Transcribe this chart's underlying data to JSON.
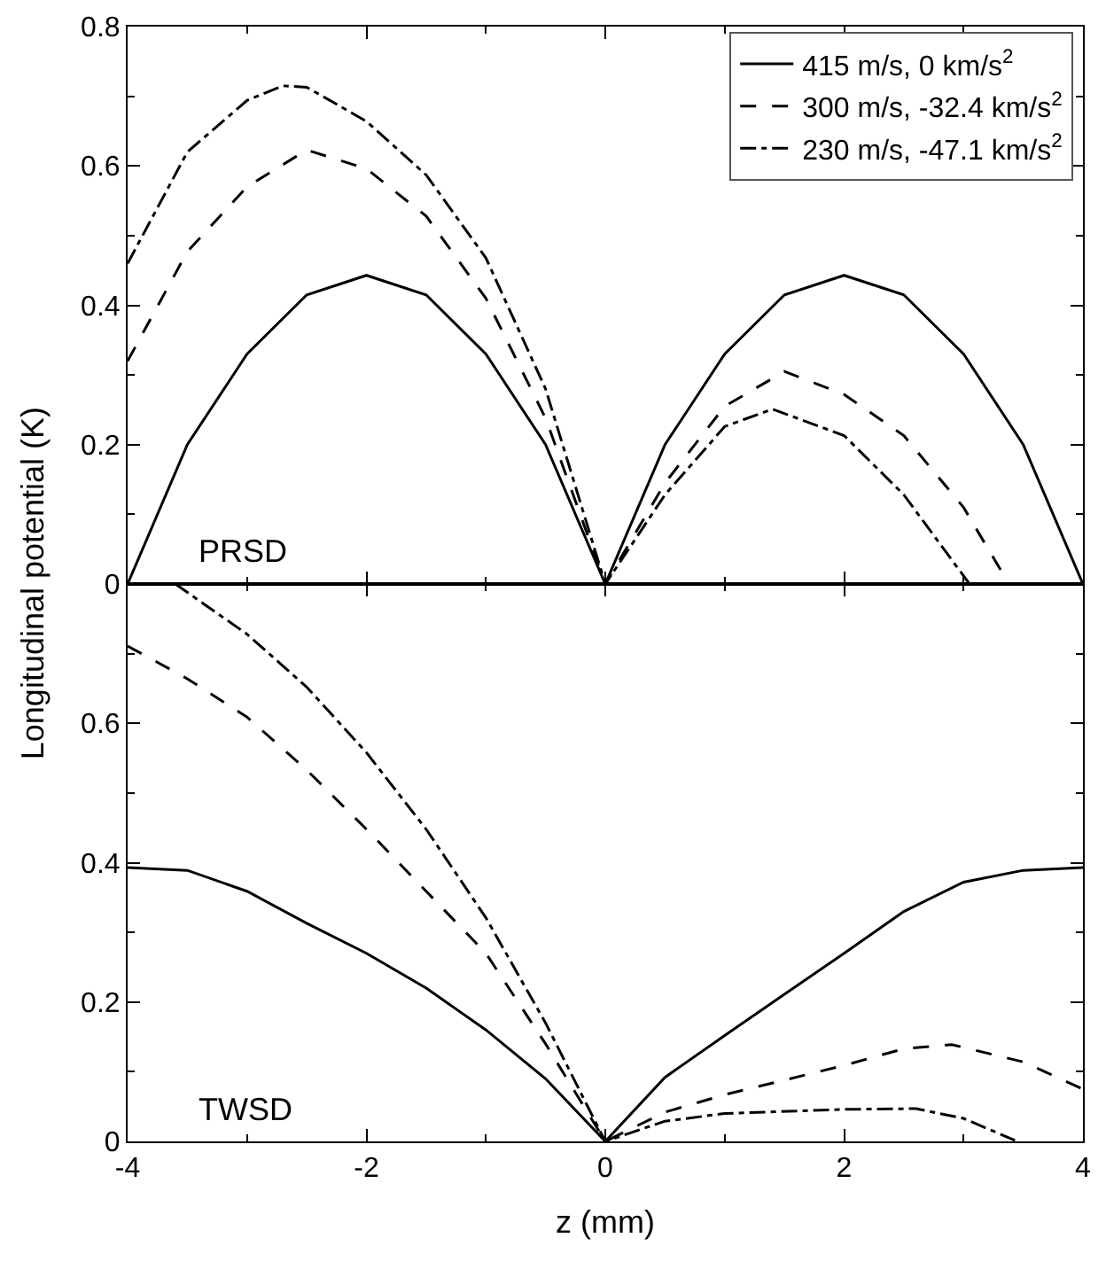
{
  "chart_data": [
    {
      "type": "line",
      "ylabel": "Longitudinal potential (K)",
      "annotations": [
        "PRSD"
      ],
      "legend": "top right",
      "tick_labels": "y",
      "xlim": [
        -4,
        4
      ],
      "xticks": [
        -4,
        -2,
        0,
        2,
        4
      ],
      "ylim": [
        0,
        0.8
      ],
      "yticks": [
        0,
        0.2,
        0.4,
        0.6,
        0.8
      ],
      "series": [
        {
          "name": "415 m/s, 0 km/s$^{2}$",
          "color": "#000000",
          "line_style": "solid",
          "x": [
            -4,
            -3.5,
            -3,
            -2.5,
            -2,
            -1.5,
            -1,
            -0.5,
            0,
            0.5,
            1,
            1.5,
            2,
            2.5,
            3,
            3.5,
            4
          ],
          "values": [
            0,
            0.2,
            0.33,
            0.415,
            0.443,
            0.415,
            0.33,
            0.2,
            0,
            0.2,
            0.33,
            0.415,
            0.443,
            0.415,
            0.33,
            0.2,
            0
          ]
        },
        {
          "name": "300 m/s, -32.4 km/s$^{2}$",
          "color": "#000000",
          "line_style": "dashed",
          "x": [
            -4,
            -3.5,
            -3,
            -2.5,
            -2,
            -1.5,
            -1,
            -0.5,
            0,
            0.5,
            1,
            1.5,
            2,
            2.5,
            3,
            3.38
          ],
          "values": [
            0.32,
            0.477,
            0.57,
            0.623,
            0.596,
            0.528,
            0.41,
            0.238,
            0,
            0.145,
            0.255,
            0.305,
            0.272,
            0.213,
            0.11,
            0
          ]
        },
        {
          "name": "230 m/s, -47.1 km/s$^{2}$",
          "color": "#000000",
          "line_style": "dashdot",
          "x": [
            -4,
            -3.5,
            -3,
            -2.7,
            -2.5,
            -2,
            -1.5,
            -1,
            -0.5,
            0,
            0.5,
            1,
            1.4,
            2,
            2.5,
            3.05
          ],
          "values": [
            0.46,
            0.62,
            0.694,
            0.715,
            0.713,
            0.664,
            0.587,
            0.468,
            0.28,
            0,
            0.128,
            0.226,
            0.251,
            0.213,
            0.128,
            0
          ]
        }
      ]
    },
    {
      "type": "line",
      "xlabel": "z (mm)",
      "annotations": [
        "TWSD"
      ],
      "xlim": [
        -4,
        4
      ],
      "xticks": [
        -4,
        -2,
        0,
        2,
        4
      ],
      "ylim": [
        0,
        0.8
      ],
      "yticks": [
        0,
        0.2,
        0.4,
        0.6,
        {
          "value": 0.8,
          "label": null
        }
      ],
      "series": [
        {
          "color": "#000000",
          "line_style": "solid",
          "x": [
            -4,
            -3.5,
            -3,
            -2.5,
            -2,
            -1.5,
            -1,
            -0.5,
            0,
            0.5,
            1,
            1.5,
            2,
            2.5,
            3,
            3.5,
            4
          ],
          "values": [
            0.393,
            0.389,
            0.359,
            0.313,
            0.27,
            0.22,
            0.16,
            0.09,
            0,
            0.092,
            0.152,
            0.211,
            0.27,
            0.33,
            0.372,
            0.389,
            0.393
          ]
        },
        {
          "color": "#000000",
          "line_style": "dashed",
          "x": [
            -4,
            -3.5,
            -3,
            -2.5,
            -2,
            -1.5,
            -1,
            -0.5,
            0,
            0.5,
            1,
            1.5,
            2,
            2.5,
            2.9,
            3.5,
            4
          ],
          "values": [
            0.711,
            0.664,
            0.609,
            0.533,
            0.448,
            0.359,
            0.27,
            0.14,
            0,
            0.042,
            0.067,
            0.088,
            0.109,
            0.133,
            0.139,
            0.114,
            0.075
          ]
        },
        {
          "color": "#000000",
          "line_style": "dashdot",
          "x": [
            -3.6,
            -3,
            -2.5,
            -2,
            -1.5,
            -1,
            -0.5,
            0,
            0.5,
            1,
            2,
            2.6,
            3,
            3.45
          ],
          "values": [
            0.8,
            0.728,
            0.652,
            0.558,
            0.448,
            0.321,
            0.17,
            0,
            0.029,
            0.04,
            0.046,
            0.047,
            0.033,
            0
          ]
        }
      ]
    }
  ]
}
